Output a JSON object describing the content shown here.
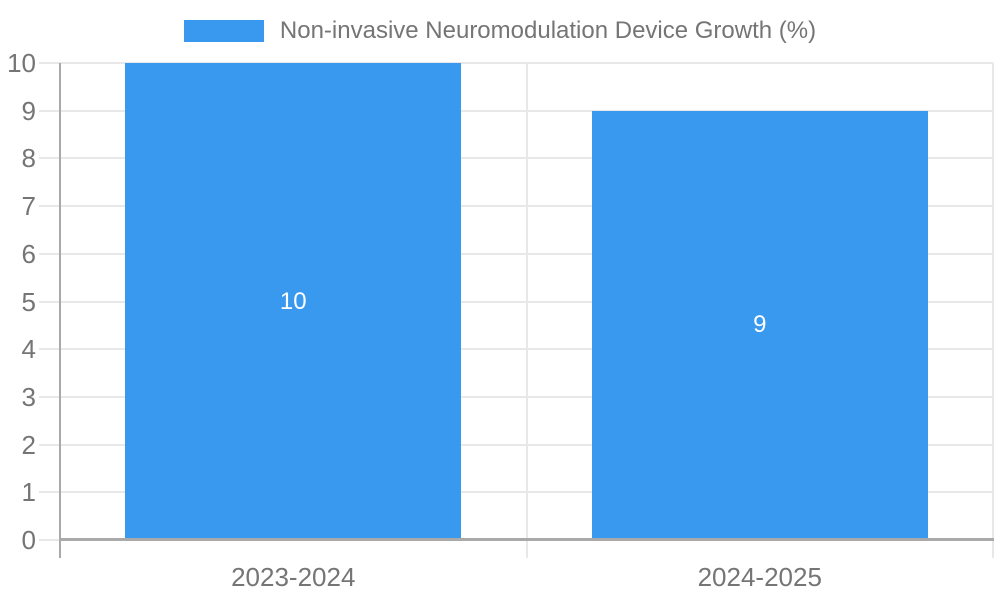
{
  "chart_data": {
    "type": "bar",
    "title": "Non-invasive Neuromodulation Device Growth (%)",
    "categories": [
      "2023-2024",
      "2024-2025"
    ],
    "series": [
      {
        "name": "Non-invasive Neuromodulation Device Growth (%)",
        "values": [
          10,
          9
        ],
        "data_labels": [
          "10",
          "9"
        ]
      }
    ],
    "xlabel": "",
    "ylabel": "",
    "ylim": [
      0,
      10
    ],
    "y_ticks": [
      0,
      1,
      2,
      3,
      4,
      5,
      6,
      7,
      8,
      9,
      10
    ],
    "grid": "horizontal gridlines on, category divider lines on",
    "legend_position": "top-center",
    "colors": {
      "bar_fill": "#3999ee",
      "bar_value_text": "#ffffff",
      "grid_line": "#e8e8e8",
      "axis_line": "#a9a9a9",
      "tick_text": "#757575",
      "legend_text": "#757575",
      "background": "#ffffff"
    }
  }
}
